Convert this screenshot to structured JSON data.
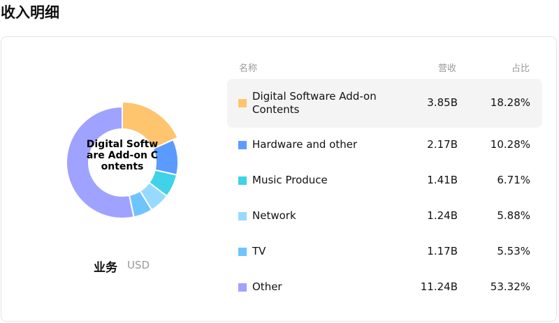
{
  "title": "收入明细",
  "segment_label": "业务",
  "currency": "USD",
  "center_label": "Digital Software Add-on Contents",
  "table": {
    "headers": {
      "name": "名称",
      "revenue": "营收",
      "share": "占比"
    }
  },
  "chart_data": {
    "type": "pie",
    "donut": true,
    "highlighted": 0,
    "categories": [
      "Digital Software Add-on Contents",
      "Hardware and other",
      "Music Produce",
      "Network",
      "TV",
      "Other"
    ],
    "revenue": [
      "3.85B",
      "2.17B",
      "1.41B",
      "1.24B",
      "1.17B",
      "11.24B"
    ],
    "share_labels": [
      "18.28%",
      "10.28%",
      "6.71%",
      "5.88%",
      "5.53%",
      "53.32%"
    ],
    "values": [
      18.28,
      10.28,
      6.71,
      5.88,
      5.53,
      53.32
    ],
    "colors": [
      "#FFC46E",
      "#5B9BFF",
      "#3FD2E8",
      "#97DAFF",
      "#6EC4FF",
      "#A0A2FF"
    ]
  }
}
